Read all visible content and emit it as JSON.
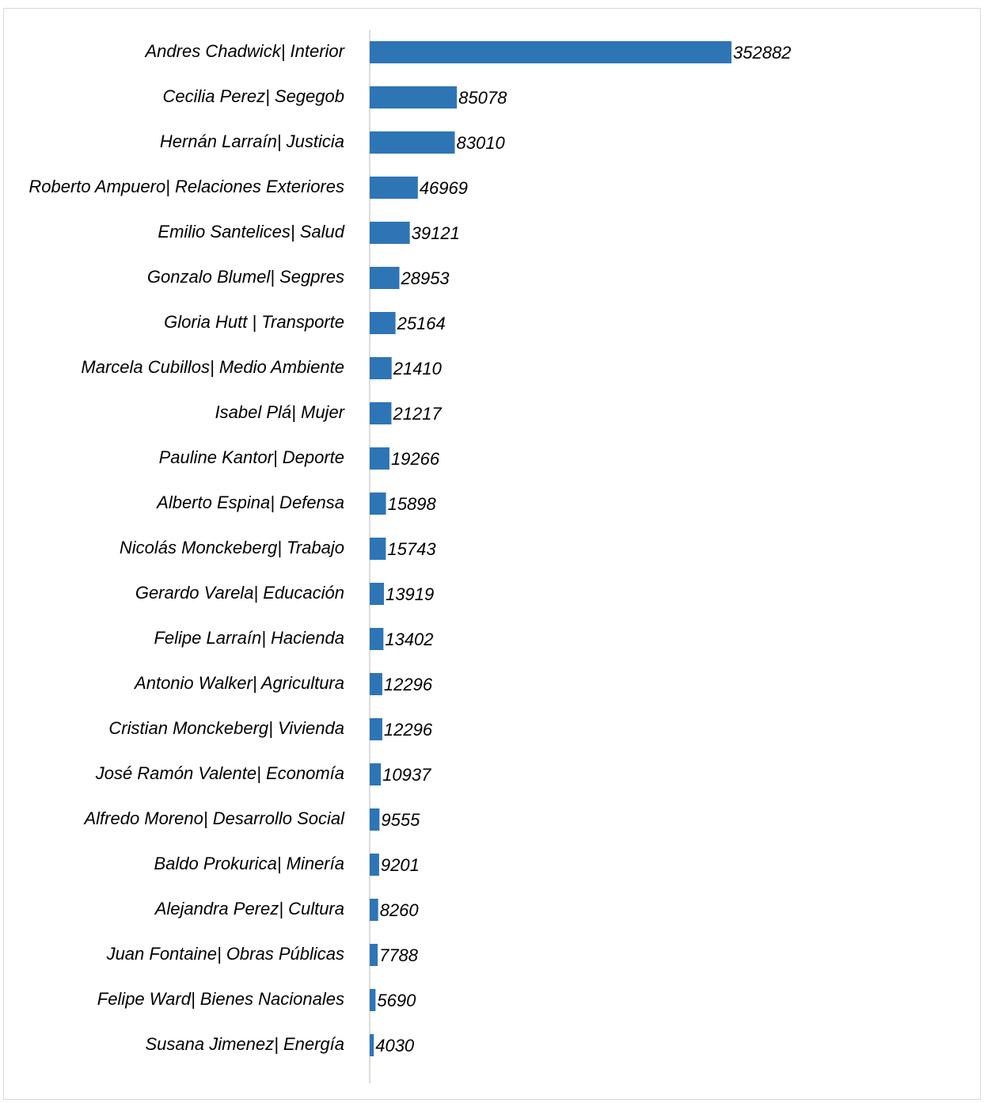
{
  "chart_data": {
    "type": "bar",
    "orientation": "horizontal",
    "categories": [
      "Andres Chadwick| Interior",
      "Cecilia Perez| Segegob",
      "Hernán Larraín| Justicia",
      "Roberto Ampuero| Relaciones Exteriores",
      "Emilio Santelices| Salud",
      "Gonzalo Blumel| Segpres",
      "Gloria Hutt | Transporte",
      "Marcela Cubillos| Medio Ambiente",
      "Isabel Plá| Mujer",
      "Pauline Kantor| Deporte",
      "Alberto Espina| Defensa",
      "Nicolás Monckeberg| Trabajo",
      "Gerardo Varela| Educación",
      "Felipe Larraín| Hacienda",
      "Antonio Walker| Agricultura",
      "Cristian Monckeberg| Vivienda",
      "José Ramón Valente| Economía",
      "Alfredo Moreno| Desarrollo Social",
      "Baldo Prokurica| Minería",
      "Alejandra Perez| Cultura",
      "Juan Fontaine| Obras Públicas",
      "Felipe Ward| Bienes Nacionales",
      "Susana Jimenez| Energía"
    ],
    "values": [
      352882,
      85078,
      83010,
      46969,
      39121,
      28953,
      25164,
      21410,
      21217,
      19266,
      15898,
      15743,
      13919,
      13402,
      12296,
      12296,
      10937,
      9555,
      9201,
      8260,
      7788,
      5690,
      4030
    ],
    "color": "#2e75b6"
  }
}
